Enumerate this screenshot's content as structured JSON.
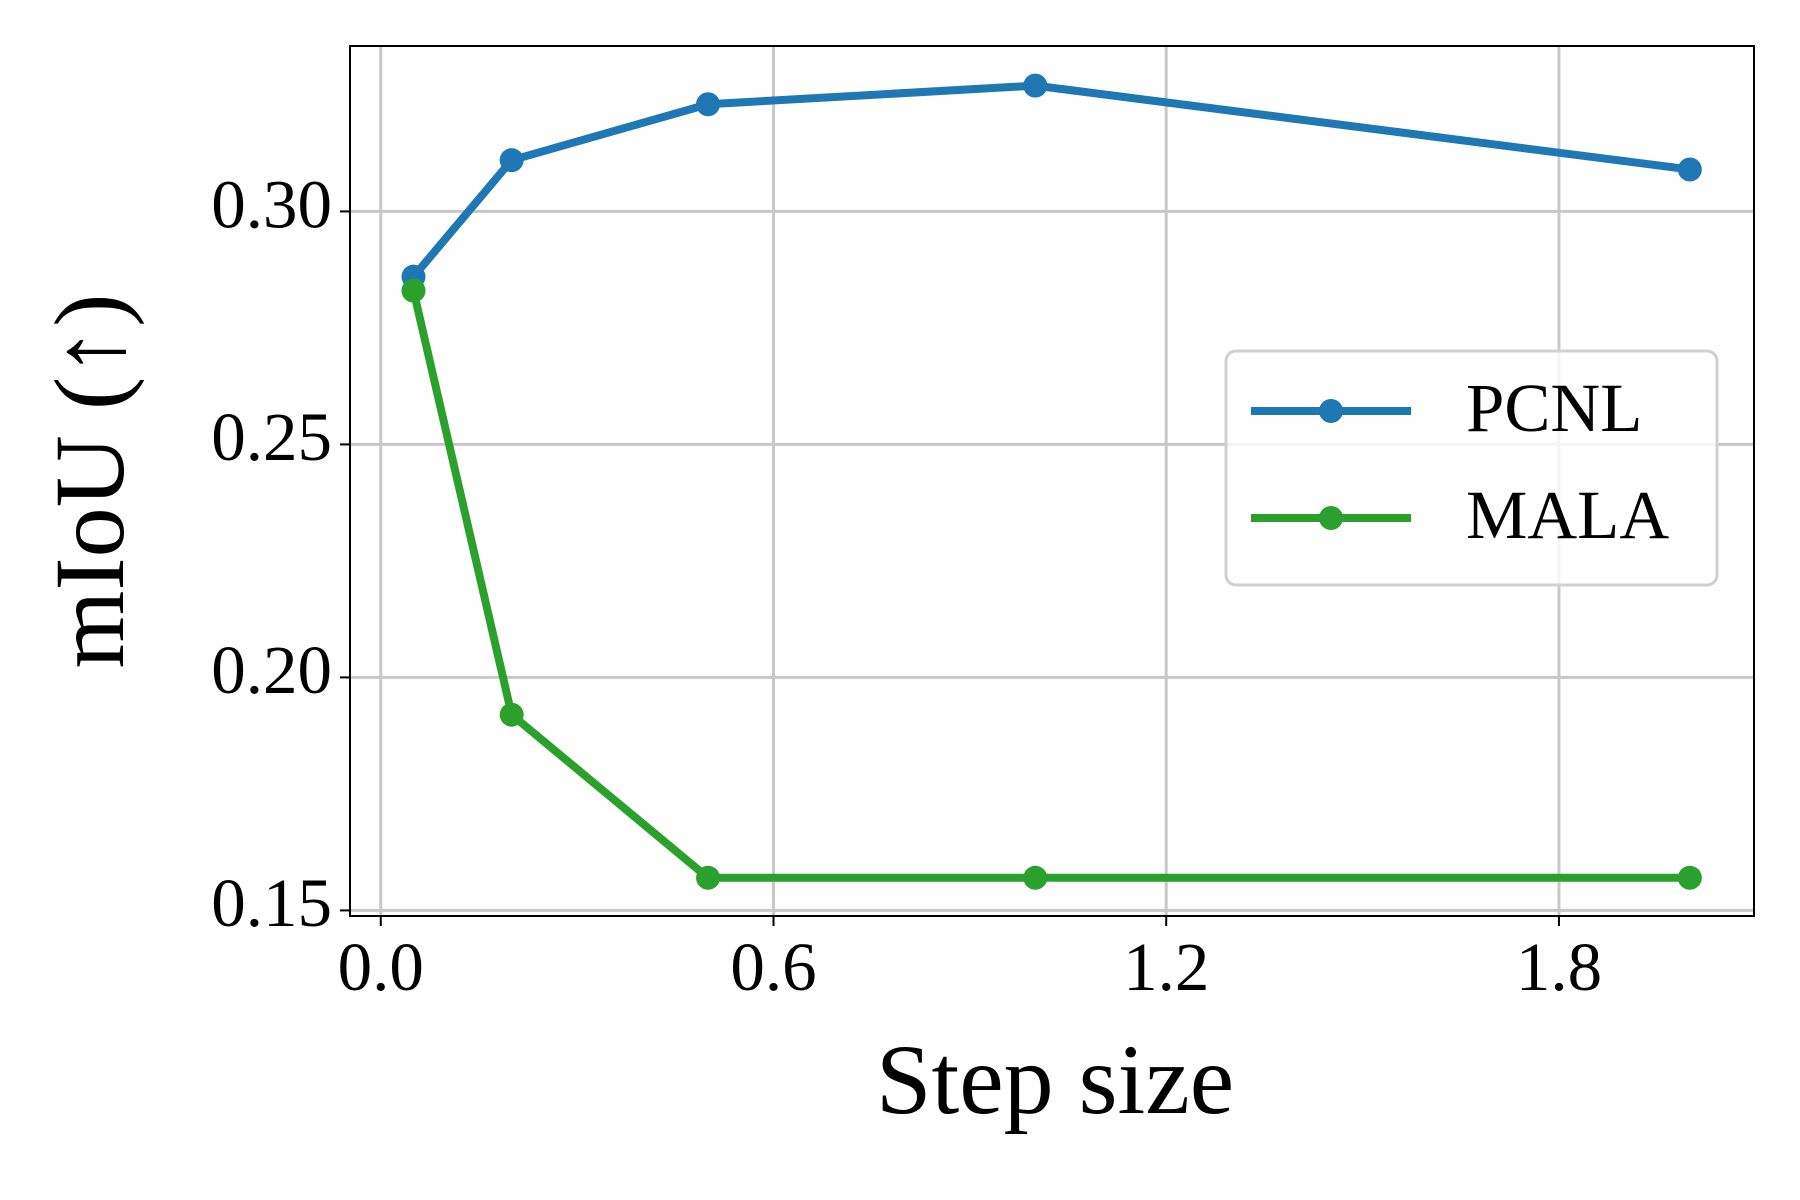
{
  "chart_data": {
    "type": "line",
    "x_label": "Step size",
    "y_label": "mIoU (↑)",
    "x": [
      0.05,
      0.2,
      0.5,
      1.0,
      2.0
    ],
    "series": [
      {
        "name": "PCNL",
        "color": "#1f77b4",
        "values": [
          0.286,
          0.311,
          0.323,
          0.327,
          0.309
        ]
      },
      {
        "name": "MALA",
        "color": "#2ca02c",
        "values": [
          0.283,
          0.192,
          0.157,
          0.157,
          0.157
        ]
      }
    ],
    "xlim": [
      -0.047,
      2.098
    ],
    "ylim": [
      0.1488,
      0.3355
    ],
    "xticks": [
      {
        "value": 0.0,
        "label": "0.0"
      },
      0.6,
      1.2,
      1.8
    ],
    "yticks": [
      0.15,
      {
        "value": 0.2,
        "label": "0.20"
      },
      0.25,
      {
        "value": 0.3,
        "label": "0.30"
      }
    ],
    "grid": true,
    "legend": "center right"
  }
}
